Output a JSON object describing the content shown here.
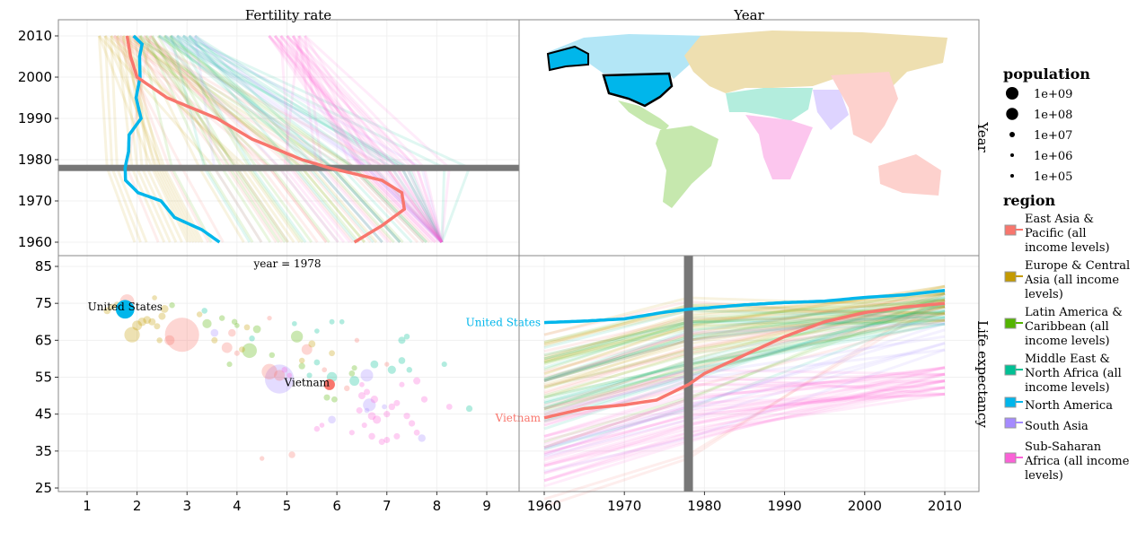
{
  "chart_data": {
    "type": "scatter",
    "panels": {
      "top_left": {
        "strip_label": "Fertility rate",
        "type": "line",
        "x": "fertility",
        "y": "year"
      },
      "top_right": {
        "strip_label": "Year",
        "type": "map"
      },
      "bottom_left": {
        "annotation": "year = 1978",
        "type": "scatter",
        "x": "fertility",
        "y": "life_expectancy"
      },
      "bottom_right": {
        "type": "line",
        "x": "year",
        "y": "life_expectancy"
      }
    },
    "right_strip_labels": [
      "Year",
      "Life expectancy"
    ],
    "selected_year": 1978,
    "axes": {
      "fertility": {
        "range": [
          0.4,
          9.8
        ],
        "ticks": [
          "1",
          "2",
          "3",
          "4",
          "5",
          "6",
          "7",
          "8",
          "9"
        ]
      },
      "year_vertical": {
        "range": [
          1956,
          2013
        ],
        "ticks": [
          "1960",
          "1970",
          "1980",
          "1990",
          "2000",
          "2010"
        ]
      },
      "life_expectancy": {
        "range": [
          24,
          88
        ],
        "ticks": [
          "25",
          "35",
          "45",
          "55",
          "65",
          "75",
          "85"
        ]
      },
      "year_horizontal": {
        "range": [
          1959,
          2013
        ],
        "ticks": [
          "1960",
          "1970",
          "1980",
          "1990",
          "2000",
          "2010"
        ]
      }
    },
    "grid": true,
    "legend_placement": "right",
    "legend": {
      "population_title": "population",
      "population_levels": [
        "1e+09",
        "1e+08",
        "1e+07",
        "1e+06",
        "1e+05"
      ],
      "population_values": [
        1000000000.0,
        100000000.0,
        10000000.0,
        1000000.0,
        100000.0
      ],
      "region_title": "region",
      "regions": [
        {
          "key": "eap",
          "label": [
            "East Asia &",
            "Pacific (all",
            "income levels)"
          ],
          "color": "#F8766D"
        },
        {
          "key": "eca",
          "label": [
            "Europe & Central",
            "Asia (all income",
            "levels)"
          ],
          "color": "#C49A00"
        },
        {
          "key": "lac",
          "label": [
            "Latin America &",
            "Caribbean (all",
            "income levels)"
          ],
          "color": "#53B400"
        },
        {
          "key": "mena",
          "label": [
            "Middle East &",
            "North Africa (all",
            "income levels)"
          ],
          "color": "#00C094"
        },
        {
          "key": "na",
          "label": [
            "North America"
          ],
          "color": "#00B6EB"
        },
        {
          "key": "sa",
          "label": [
            "South Asia"
          ],
          "color": "#A58AFF"
        },
        {
          "key": "ssa",
          "label": [
            "Sub-Saharan",
            "Africa (all income",
            "levels)"
          ],
          "color": "#FB61D7"
        }
      ]
    },
    "highlighted": [
      {
        "name": "United States",
        "region": "na",
        "population": 222000000,
        "fertility": {
          "years": [
            1960,
            1963,
            1966,
            1970,
            1972,
            1975,
            1978,
            1982,
            1986,
            1990,
            1995,
            2000,
            2005,
            2008,
            2010
          ],
          "values": [
            3.65,
            3.3,
            2.75,
            2.48,
            2.02,
            1.77,
            1.76,
            1.83,
            1.84,
            2.08,
            1.98,
            2.06,
            2.05,
            2.1,
            1.93
          ]
        },
        "life_expectancy": {
          "years": [
            1960,
            1965,
            1970,
            1975,
            1978,
            1980,
            1985,
            1990,
            1995,
            2000,
            2005,
            2010
          ],
          "values": [
            69.8,
            70.2,
            70.8,
            72.6,
            73.4,
            73.7,
            74.6,
            75.2,
            75.6,
            76.6,
            77.3,
            78.5
          ]
        },
        "fertility_1978": 1.76,
        "life_1978": 73.4
      },
      {
        "name": "Vietnam",
        "region": "eap",
        "population": 51000000,
        "fertility": {
          "years": [
            1960,
            1964,
            1968,
            1972,
            1975,
            1978,
            1980,
            1985,
            1990,
            1995,
            2000,
            2005,
            2010
          ],
          "values": [
            6.35,
            6.9,
            7.35,
            7.3,
            6.9,
            5.85,
            5.3,
            4.3,
            3.6,
            2.6,
            2.0,
            1.87,
            1.8
          ]
        },
        "life_expectancy": {
          "years": [
            1960,
            1965,
            1970,
            1974,
            1978,
            1980,
            1985,
            1990,
            1995,
            2000,
            2005,
            2010
          ],
          "values": [
            44,
            46.5,
            47.5,
            48.8,
            53,
            56,
            61,
            66,
            70,
            72.5,
            74,
            75
          ]
        },
        "fertility_1978": 5.85,
        "life_1978": 53
      }
    ],
    "points_1978": [
      {
        "r": "eca",
        "f": 1.4,
        "l": 73,
        "p": 8000000.0
      },
      {
        "r": "eca",
        "f": 1.5,
        "l": 74,
        "p": 5000000.0
      },
      {
        "r": "eca",
        "f": 1.6,
        "l": 74.5,
        "p": 9000000.0
      },
      {
        "r": "eca",
        "f": 1.9,
        "l": 66.5,
        "p": 137000000.0
      },
      {
        "r": "eca",
        "f": 2.0,
        "l": 69,
        "p": 35000000.0
      },
      {
        "r": "eca",
        "f": 2.1,
        "l": 70,
        "p": 20000000.0
      },
      {
        "r": "eca",
        "f": 2.2,
        "l": 70.5,
        "p": 15000000.0
      },
      {
        "r": "eca",
        "f": 2.3,
        "l": 70,
        "p": 10000000.0
      },
      {
        "r": "eca",
        "f": 2.5,
        "l": 71.5,
        "p": 10000000.0
      },
      {
        "r": "eca",
        "f": 2.4,
        "l": 68.8,
        "p": 5000000.0
      },
      {
        "r": "eca",
        "f": 2.55,
        "l": 73.5,
        "p": 15000000.0
      },
      {
        "r": "eca",
        "f": 2.35,
        "l": 76.5,
        "p": 1000000.0
      },
      {
        "r": "eca",
        "f": 2.45,
        "l": 65,
        "p": 3000000.0
      },
      {
        "r": "eca",
        "f": 3.25,
        "l": 72,
        "p": 3000000.0
      },
      {
        "r": "eca",
        "f": 3.55,
        "l": 65,
        "p": 5000000.0
      },
      {
        "r": "eca",
        "f": 4.2,
        "l": 68.5,
        "p": 4000000.0
      },
      {
        "r": "eca",
        "f": 4.1,
        "l": 62.5,
        "p": 4000000.0
      },
      {
        "r": "eca",
        "f": 5.5,
        "l": 64,
        "p": 9000000.0
      },
      {
        "r": "eca",
        "f": 5.9,
        "l": 61.5,
        "p": 4000000.0
      },
      {
        "r": "eca",
        "f": 5.3,
        "l": 59.5,
        "p": 3000000.0
      },
      {
        "r": "eap",
        "f": 1.8,
        "l": 75.5,
        "p": 110000000.0
      },
      {
        "r": "eap",
        "f": 2.9,
        "l": 66.5,
        "p": 960000000.0
      },
      {
        "r": "eap",
        "f": 2.65,
        "l": 65,
        "p": 37000000.0
      },
      {
        "r": "eap",
        "f": 3.8,
        "l": 63,
        "p": 45000000.0
      },
      {
        "r": "eap",
        "f": 3.9,
        "l": 67,
        "p": 13000000.0
      },
      {
        "r": "eap",
        "f": 4.0,
        "l": 61.5,
        "p": 2000000.0
      },
      {
        "r": "eap",
        "f": 4.65,
        "l": 56.5,
        "p": 140000000.0
      },
      {
        "r": "eap",
        "f": 4.85,
        "l": 55.5,
        "p": 50000000.0
      },
      {
        "r": "eap",
        "f": 5.4,
        "l": 62.5,
        "p": 46000000.0
      },
      {
        "r": "eap",
        "f": 5.75,
        "l": 57,
        "p": 1000000.0
      },
      {
        "r": "eap",
        "f": 6.2,
        "l": 52,
        "p": 3000000.0
      },
      {
        "r": "eap",
        "f": 6.4,
        "l": 65,
        "p": 500000.0
      },
      {
        "r": "eap",
        "f": 7.0,
        "l": 58.5,
        "p": 500000.0
      },
      {
        "r": "eap",
        "f": 5.1,
        "l": 34,
        "p": 7000000.0
      },
      {
        "r": "eap",
        "f": 4.5,
        "l": 33,
        "p": 500000.0
      },
      {
        "r": "eap",
        "f": 4.65,
        "l": 71,
        "p": 500000.0
      },
      {
        "r": "lac",
        "f": 2.7,
        "l": 74.5,
        "p": 3000000.0
      },
      {
        "r": "lac",
        "f": 3.4,
        "l": 69.5,
        "p": 27000000.0
      },
      {
        "r": "lac",
        "f": 3.7,
        "l": 71,
        "p": 3000000.0
      },
      {
        "r": "lac",
        "f": 3.95,
        "l": 70,
        "p": 3000000.0
      },
      {
        "r": "lac",
        "f": 4.4,
        "l": 68,
        "p": 15000000.0
      },
      {
        "r": "lac",
        "f": 4.25,
        "l": 62.2,
        "p": 120000000.0
      },
      {
        "r": "lac",
        "f": 4.7,
        "l": 61,
        "p": 3000000.0
      },
      {
        "r": "lac",
        "f": 5.2,
        "l": 66,
        "p": 65000000.0
      },
      {
        "r": "lac",
        "f": 5.3,
        "l": 58,
        "p": 6000000.0
      },
      {
        "r": "lac",
        "f": 3.85,
        "l": 58.5,
        "p": 2000000.0
      },
      {
        "r": "lac",
        "f": 6.3,
        "l": 56,
        "p": 4000000.0
      },
      {
        "r": "lac",
        "f": 6.35,
        "l": 57.5,
        "p": 2000000.0
      },
      {
        "r": "lac",
        "f": 5.8,
        "l": 49.5,
        "p": 5000000.0
      },
      {
        "r": "lac",
        "f": 5.95,
        "l": 49,
        "p": 4000000.0
      },
      {
        "r": "lac",
        "f": 4.0,
        "l": 69,
        "p": 1000000.0
      },
      {
        "r": "mena",
        "f": 3.35,
        "l": 73,
        "p": 3500000.0
      },
      {
        "r": "mena",
        "f": 4.3,
        "l": 65.5,
        "p": 3000000.0
      },
      {
        "r": "mena",
        "f": 5.15,
        "l": 69.5,
        "p": 1000000.0
      },
      {
        "r": "mena",
        "f": 5.6,
        "l": 67.5,
        "p": 1000000.0
      },
      {
        "r": "mena",
        "f": 5.9,
        "l": 70,
        "p": 1500000.0
      },
      {
        "r": "mena",
        "f": 6.1,
        "l": 70,
        "p": 1000000.0
      },
      {
        "r": "mena",
        "f": 5.6,
        "l": 59,
        "p": 4000000.0
      },
      {
        "r": "mena",
        "f": 5.9,
        "l": 55,
        "p": 40000000.0
      },
      {
        "r": "mena",
        "f": 6.35,
        "l": 54,
        "p": 35000000.0
      },
      {
        "r": "mena",
        "f": 6.75,
        "l": 58.5,
        "p": 15000000.0
      },
      {
        "r": "mena",
        "f": 7.1,
        "l": 57,
        "p": 18000000.0
      },
      {
        "r": "mena",
        "f": 7.3,
        "l": 65,
        "p": 10000000.0
      },
      {
        "r": "mena",
        "f": 7.4,
        "l": 66,
        "p": 3000000.0
      },
      {
        "r": "mena",
        "f": 7.3,
        "l": 59.5,
        "p": 8000000.0
      },
      {
        "r": "mena",
        "f": 7.45,
        "l": 57,
        "p": 3000000.0
      },
      {
        "r": "mena",
        "f": 8.15,
        "l": 58.5,
        "p": 2000000.0
      },
      {
        "r": "mena",
        "f": 8.65,
        "l": 46.5,
        "p": 6000000.0
      },
      {
        "r": "mena",
        "f": 5.45,
        "l": 55.5,
        "p": 2000000.0
      },
      {
        "r": "sa",
        "f": 3.55,
        "l": 67,
        "p": 14000000.0
      },
      {
        "r": "sa",
        "f": 4.85,
        "l": 54.5,
        "p": 660000000.0
      },
      {
        "r": "sa",
        "f": 5.9,
        "l": 43.5,
        "p": 14000000.0
      },
      {
        "r": "sa",
        "f": 6.6,
        "l": 55.5,
        "p": 75000000.0
      },
      {
        "r": "sa",
        "f": 6.65,
        "l": 47.5,
        "p": 80000000.0
      },
      {
        "r": "sa",
        "f": 6.95,
        "l": 47,
        "p": 1000000.0
      },
      {
        "r": "sa",
        "f": 7.7,
        "l": 38.5,
        "p": 13000000.0
      },
      {
        "r": "sa",
        "f": 6.6,
        "l": 46,
        "p": 1000000.0
      },
      {
        "r": "ssa",
        "f": 6.5,
        "l": 50,
        "p": 10000000.0
      },
      {
        "r": "ssa",
        "f": 6.6,
        "l": 51,
        "p": 5000000.0
      },
      {
        "r": "ssa",
        "f": 6.75,
        "l": 49,
        "p": 12000000.0
      },
      {
        "r": "ssa",
        "f": 6.45,
        "l": 46,
        "p": 5000000.0
      },
      {
        "r": "ssa",
        "f": 6.7,
        "l": 44.5,
        "p": 15000000.0
      },
      {
        "r": "ssa",
        "f": 6.8,
        "l": 43.5,
        "p": 18000000.0
      },
      {
        "r": "ssa",
        "f": 7.0,
        "l": 45,
        "p": 6000000.0
      },
      {
        "r": "ssa",
        "f": 7.1,
        "l": 47,
        "p": 7000000.0
      },
      {
        "r": "ssa",
        "f": 7.2,
        "l": 48,
        "p": 5000000.0
      },
      {
        "r": "ssa",
        "f": 7.4,
        "l": 44.5,
        "p": 6000000.0
      },
      {
        "r": "ssa",
        "f": 7.5,
        "l": 42.5,
        "p": 6000000.0
      },
      {
        "r": "ssa",
        "f": 7.6,
        "l": 54,
        "p": 10000000.0
      },
      {
        "r": "ssa",
        "f": 7.75,
        "l": 49,
        "p": 6000000.0
      },
      {
        "r": "ssa",
        "f": 8.25,
        "l": 47,
        "p": 4000000.0
      },
      {
        "r": "ssa",
        "f": 7.2,
        "l": 39,
        "p": 5000000.0
      },
      {
        "r": "ssa",
        "f": 7.0,
        "l": 38,
        "p": 5000000.0
      },
      {
        "r": "ssa",
        "f": 6.9,
        "l": 37.5,
        "p": 5000000.0
      },
      {
        "r": "ssa",
        "f": 7.6,
        "l": 40,
        "p": 4000000.0
      },
      {
        "r": "ssa",
        "f": 6.3,
        "l": 40,
        "p": 2000000.0
      },
      {
        "r": "ssa",
        "f": 5.6,
        "l": 41,
        "p": 3000000.0
      },
      {
        "r": "ssa",
        "f": 5.7,
        "l": 42,
        "p": 1000000.0
      },
      {
        "r": "ssa",
        "f": 6.7,
        "l": 39,
        "p": 7000000.0
      },
      {
        "r": "ssa",
        "f": 6.55,
        "l": 42,
        "p": 2000000.0
      },
      {
        "r": "ssa",
        "f": 5.05,
        "l": 55.5,
        "p": 1000000.0
      },
      {
        "r": "ssa",
        "f": 7.3,
        "l": 53,
        "p": 2000000.0
      },
      {
        "r": "ssa",
        "f": 6.5,
        "l": 53,
        "p": 1000000.0
      },
      {
        "r": "ssa",
        "f": 4.95,
        "l": 57,
        "p": 3000000.0
      }
    ]
  }
}
